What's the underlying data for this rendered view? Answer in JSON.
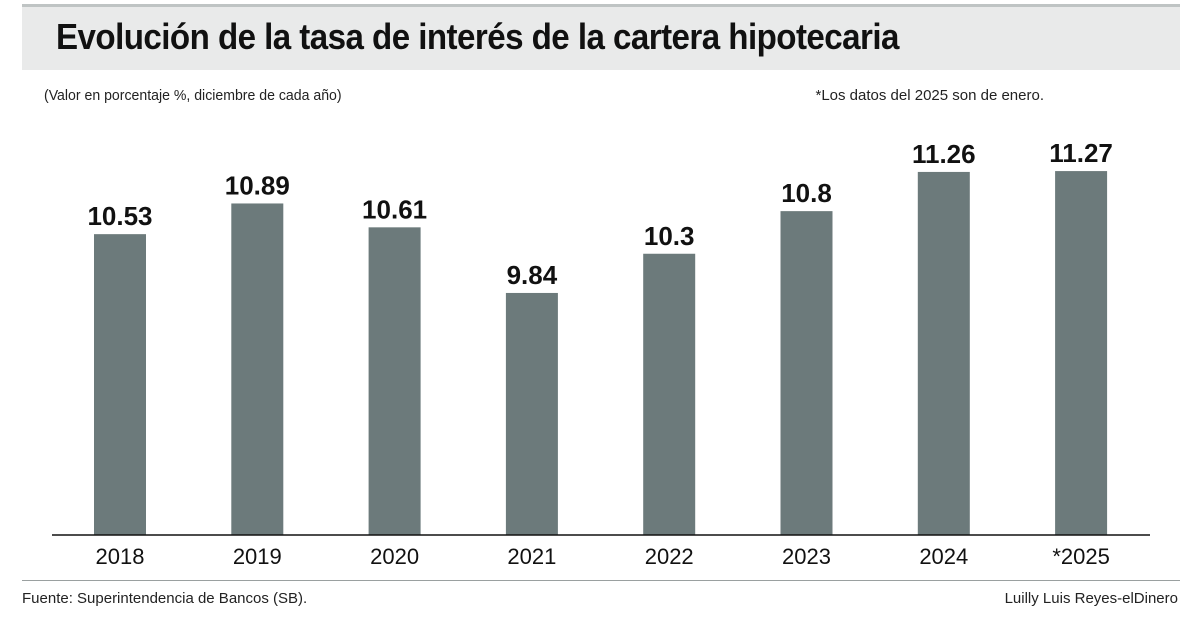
{
  "header": {
    "title": "Evolución de la tasa de interés de la cartera hipotecaria",
    "subtitle": "(Valor en porcentaje %, diciembre de cada año)",
    "note": "*Los datos del 2025 son de enero."
  },
  "footer": {
    "source": "Fuente: Superintendencia de Bancos (SB).",
    "credit": "Luilly Luis Reyes-elDinero"
  },
  "colors": {
    "bar": "#6c7a7b",
    "band": "#e9eaea"
  },
  "chart_data": {
    "type": "bar",
    "title": "Evolución de la tasa de interés de la cartera hipotecaria",
    "xlabel": "",
    "ylabel": "Valor en porcentaje %",
    "categories": [
      "2018",
      "2019",
      "2020",
      "2021",
      "2022",
      "2023",
      "2024",
      "*2025"
    ],
    "values": [
      10.53,
      10.89,
      10.61,
      9.84,
      10.3,
      10.8,
      11.26,
      11.27
    ],
    "labels": [
      "10.53",
      "10.89",
      "10.61",
      "9.84",
      "10.3",
      "10.8",
      "11.26",
      "11.27"
    ],
    "ylim": [
      7.0,
      11.4
    ],
    "grid": false,
    "legend": "none"
  }
}
